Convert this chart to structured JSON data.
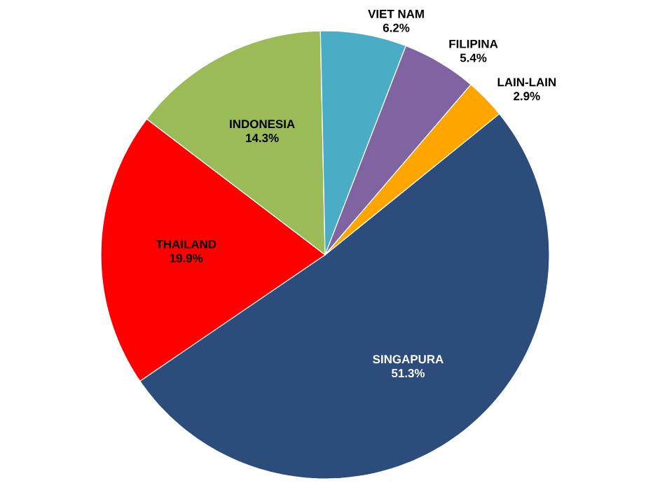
{
  "chart_data": {
    "type": "pie",
    "categories": [
      "SINGAPURA",
      "THAILAND",
      "INDONESIA",
      "VIET NAM",
      "FILIPINA",
      "LAIN-LAIN"
    ],
    "values": [
      51.3,
      19.9,
      14.3,
      6.2,
      5.4,
      2.9
    ],
    "value_labels": [
      "51.3%",
      "19.9%",
      "14.3%",
      "6.2%",
      "5.4%",
      "2.9%"
    ],
    "colors": [
      "#2c4d7c",
      "#ff0000",
      "#9bbb59",
      "#4bacc6",
      "#8064a2",
      "#ffa500"
    ]
  }
}
